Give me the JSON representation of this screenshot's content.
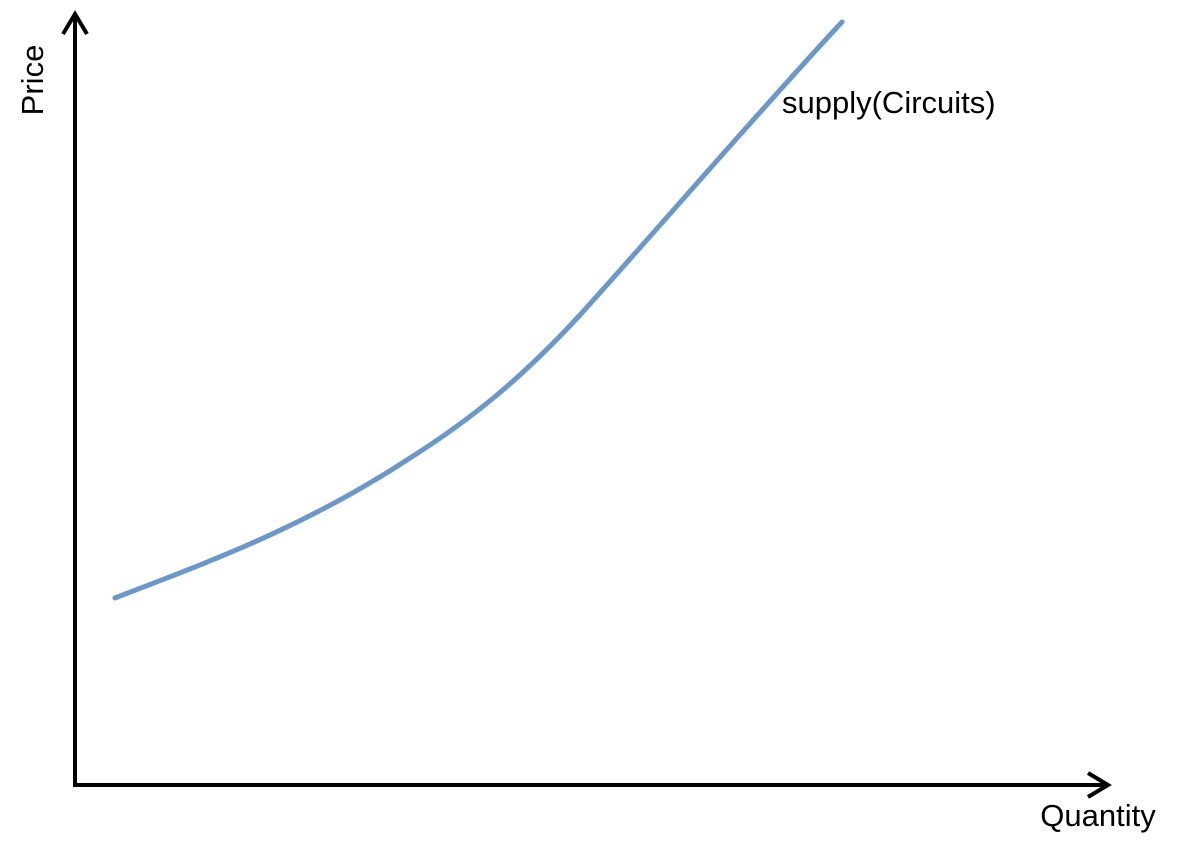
{
  "y_axis_label": "Price",
  "x_axis_label": "Quantity",
  "curve_label": "supply(Circuits)"
}
